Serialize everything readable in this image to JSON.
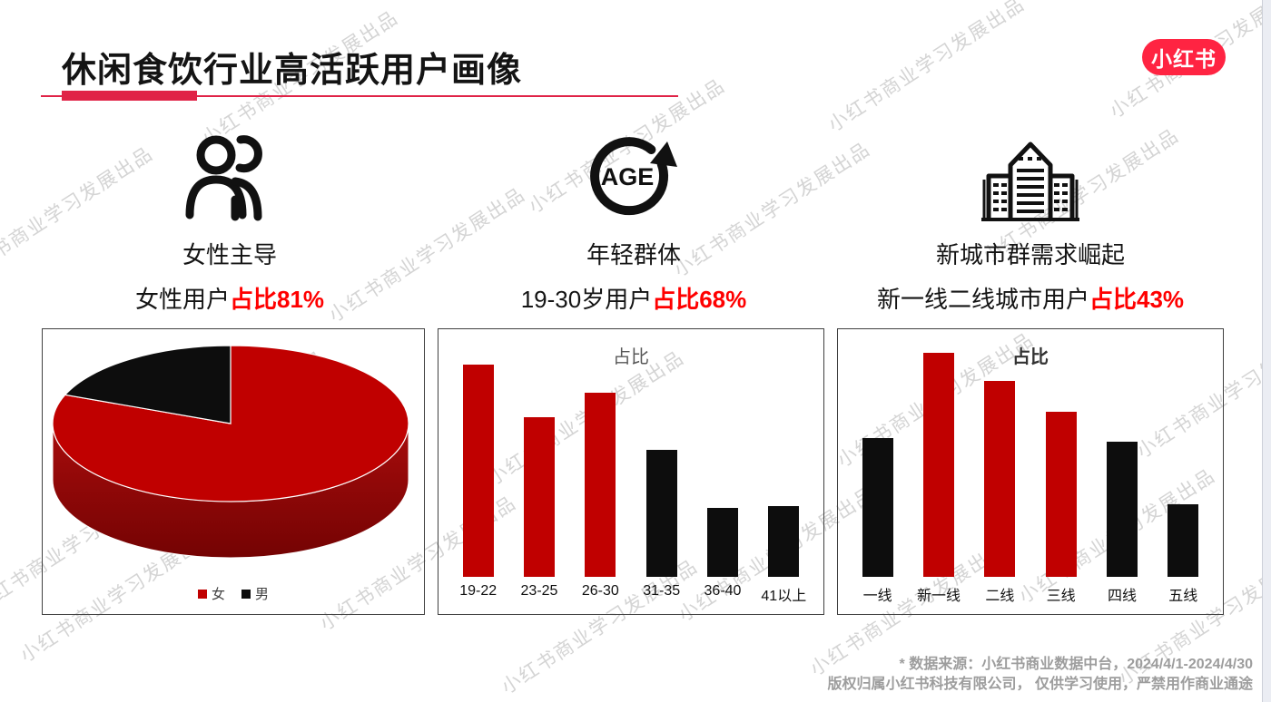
{
  "watermark": {
    "text": "小红书商业学习发展出品",
    "color": "#d4d4d4"
  },
  "header": {
    "title": "休闲食饮行业高活跃用户画像",
    "underline_color": "#e02347",
    "logo_text": "小红书",
    "logo_color": "#ff2442"
  },
  "colors": {
    "highlight_red": "#ff0000",
    "bar_red": "#c00000",
    "bar_black": "#0d0d0d"
  },
  "features": [
    {
      "icon": "two-people-icon",
      "title": "女性主导",
      "stat_prefix": "女性用户",
      "stat_highlight": "占比81%"
    },
    {
      "icon": "age-cycle-icon",
      "title": "年轻群体",
      "stat_prefix": "19-30岁用户",
      "stat_highlight": "占比68%"
    },
    {
      "icon": "city-buildings-icon",
      "title": "新城市群需求崛起",
      "stat_prefix": "新一线二线城市用户",
      "stat_highlight": "占比43%"
    }
  ],
  "chart_data": [
    {
      "type": "pie",
      "style": "3d",
      "legend_position": "bottom",
      "slices": [
        {
          "label": "女",
          "value": 81,
          "color": "#c00000"
        },
        {
          "label": "男",
          "value": 19,
          "color": "#0d0d0d"
        }
      ]
    },
    {
      "type": "bar",
      "title": "占比",
      "categories": [
        "19-22",
        "23-25",
        "26-30",
        "31-35",
        "36-40",
        "41以上"
      ],
      "values": [
        26,
        19.5,
        22.5,
        15.5,
        8.4,
        8.7
      ],
      "colors": [
        "#c00000",
        "#c00000",
        "#c00000",
        "#0d0d0d",
        "#0d0d0d",
        "#0d0d0d"
      ],
      "ylim": [
        0,
        28
      ],
      "grid": false,
      "note": "values estimated from bar heights; 19-30 segments sum to 68%"
    },
    {
      "type": "bar",
      "title": "占比",
      "categories": [
        "一线",
        "新一线",
        "二线",
        "三线",
        "四线",
        "五线"
      ],
      "values": [
        14.3,
        23,
        20.1,
        17,
        13.9,
        7.5
      ],
      "colors": [
        "#0d0d0d",
        "#c00000",
        "#c00000",
        "#c00000",
        "#0d0d0d",
        "#0d0d0d"
      ],
      "ylim": [
        0,
        23.5
      ],
      "grid": false,
      "note": "values estimated from bar heights; 新一线+二线 sum to 43%"
    }
  ],
  "footer": {
    "line1": "* 数据来源：小红书商业数据中台，2024/4/1-2024/4/30",
    "line2": "版权归属小红书科技有限公司， 仅供学习使用，严禁用作商业通途"
  }
}
